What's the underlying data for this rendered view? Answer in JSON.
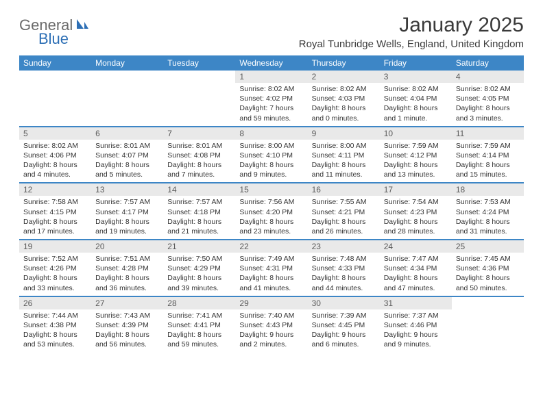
{
  "brand": {
    "general": "General",
    "blue": "Blue"
  },
  "title": "January 2025",
  "location": "Royal Tunbridge Wells, England, United Kingdom",
  "colors": {
    "header_bg": "#3d86c6",
    "header_text": "#ffffff",
    "daynum_bg": "#e9e9e9",
    "daynum_text": "#5a5a5a",
    "body_text": "#333333",
    "rule": "#3d86c6",
    "logo_gray": "#6b6b6b",
    "logo_blue": "#2d6fb5"
  },
  "day_headers": [
    "Sunday",
    "Monday",
    "Tuesday",
    "Wednesday",
    "Thursday",
    "Friday",
    "Saturday"
  ],
  "weeks": [
    [
      {
        "n": "",
        "sr": "",
        "ss": "",
        "dl": "",
        "empty": true
      },
      {
        "n": "",
        "sr": "",
        "ss": "",
        "dl": "",
        "empty": true
      },
      {
        "n": "",
        "sr": "",
        "ss": "",
        "dl": "",
        "empty": true
      },
      {
        "n": "1",
        "sr": "Sunrise: 8:02 AM",
        "ss": "Sunset: 4:02 PM",
        "dl": "Daylight: 7 hours and 59 minutes."
      },
      {
        "n": "2",
        "sr": "Sunrise: 8:02 AM",
        "ss": "Sunset: 4:03 PM",
        "dl": "Daylight: 8 hours and 0 minutes."
      },
      {
        "n": "3",
        "sr": "Sunrise: 8:02 AM",
        "ss": "Sunset: 4:04 PM",
        "dl": "Daylight: 8 hours and 1 minute."
      },
      {
        "n": "4",
        "sr": "Sunrise: 8:02 AM",
        "ss": "Sunset: 4:05 PM",
        "dl": "Daylight: 8 hours and 3 minutes."
      }
    ],
    [
      {
        "n": "5",
        "sr": "Sunrise: 8:02 AM",
        "ss": "Sunset: 4:06 PM",
        "dl": "Daylight: 8 hours and 4 minutes."
      },
      {
        "n": "6",
        "sr": "Sunrise: 8:01 AM",
        "ss": "Sunset: 4:07 PM",
        "dl": "Daylight: 8 hours and 5 minutes."
      },
      {
        "n": "7",
        "sr": "Sunrise: 8:01 AM",
        "ss": "Sunset: 4:08 PM",
        "dl": "Daylight: 8 hours and 7 minutes."
      },
      {
        "n": "8",
        "sr": "Sunrise: 8:00 AM",
        "ss": "Sunset: 4:10 PM",
        "dl": "Daylight: 8 hours and 9 minutes."
      },
      {
        "n": "9",
        "sr": "Sunrise: 8:00 AM",
        "ss": "Sunset: 4:11 PM",
        "dl": "Daylight: 8 hours and 11 minutes."
      },
      {
        "n": "10",
        "sr": "Sunrise: 7:59 AM",
        "ss": "Sunset: 4:12 PM",
        "dl": "Daylight: 8 hours and 13 minutes."
      },
      {
        "n": "11",
        "sr": "Sunrise: 7:59 AM",
        "ss": "Sunset: 4:14 PM",
        "dl": "Daylight: 8 hours and 15 minutes."
      }
    ],
    [
      {
        "n": "12",
        "sr": "Sunrise: 7:58 AM",
        "ss": "Sunset: 4:15 PM",
        "dl": "Daylight: 8 hours and 17 minutes."
      },
      {
        "n": "13",
        "sr": "Sunrise: 7:57 AM",
        "ss": "Sunset: 4:17 PM",
        "dl": "Daylight: 8 hours and 19 minutes."
      },
      {
        "n": "14",
        "sr": "Sunrise: 7:57 AM",
        "ss": "Sunset: 4:18 PM",
        "dl": "Daylight: 8 hours and 21 minutes."
      },
      {
        "n": "15",
        "sr": "Sunrise: 7:56 AM",
        "ss": "Sunset: 4:20 PM",
        "dl": "Daylight: 8 hours and 23 minutes."
      },
      {
        "n": "16",
        "sr": "Sunrise: 7:55 AM",
        "ss": "Sunset: 4:21 PM",
        "dl": "Daylight: 8 hours and 26 minutes."
      },
      {
        "n": "17",
        "sr": "Sunrise: 7:54 AM",
        "ss": "Sunset: 4:23 PM",
        "dl": "Daylight: 8 hours and 28 minutes."
      },
      {
        "n": "18",
        "sr": "Sunrise: 7:53 AM",
        "ss": "Sunset: 4:24 PM",
        "dl": "Daylight: 8 hours and 31 minutes."
      }
    ],
    [
      {
        "n": "19",
        "sr": "Sunrise: 7:52 AM",
        "ss": "Sunset: 4:26 PM",
        "dl": "Daylight: 8 hours and 33 minutes."
      },
      {
        "n": "20",
        "sr": "Sunrise: 7:51 AM",
        "ss": "Sunset: 4:28 PM",
        "dl": "Daylight: 8 hours and 36 minutes."
      },
      {
        "n": "21",
        "sr": "Sunrise: 7:50 AM",
        "ss": "Sunset: 4:29 PM",
        "dl": "Daylight: 8 hours and 39 minutes."
      },
      {
        "n": "22",
        "sr": "Sunrise: 7:49 AM",
        "ss": "Sunset: 4:31 PM",
        "dl": "Daylight: 8 hours and 41 minutes."
      },
      {
        "n": "23",
        "sr": "Sunrise: 7:48 AM",
        "ss": "Sunset: 4:33 PM",
        "dl": "Daylight: 8 hours and 44 minutes."
      },
      {
        "n": "24",
        "sr": "Sunrise: 7:47 AM",
        "ss": "Sunset: 4:34 PM",
        "dl": "Daylight: 8 hours and 47 minutes."
      },
      {
        "n": "25",
        "sr": "Sunrise: 7:45 AM",
        "ss": "Sunset: 4:36 PM",
        "dl": "Daylight: 8 hours and 50 minutes."
      }
    ],
    [
      {
        "n": "26",
        "sr": "Sunrise: 7:44 AM",
        "ss": "Sunset: 4:38 PM",
        "dl": "Daylight: 8 hours and 53 minutes."
      },
      {
        "n": "27",
        "sr": "Sunrise: 7:43 AM",
        "ss": "Sunset: 4:39 PM",
        "dl": "Daylight: 8 hours and 56 minutes."
      },
      {
        "n": "28",
        "sr": "Sunrise: 7:41 AM",
        "ss": "Sunset: 4:41 PM",
        "dl": "Daylight: 8 hours and 59 minutes."
      },
      {
        "n": "29",
        "sr": "Sunrise: 7:40 AM",
        "ss": "Sunset: 4:43 PM",
        "dl": "Daylight: 9 hours and 2 minutes."
      },
      {
        "n": "30",
        "sr": "Sunrise: 7:39 AM",
        "ss": "Sunset: 4:45 PM",
        "dl": "Daylight: 9 hours and 6 minutes."
      },
      {
        "n": "31",
        "sr": "Sunrise: 7:37 AM",
        "ss": "Sunset: 4:46 PM",
        "dl": "Daylight: 9 hours and 9 minutes."
      },
      {
        "n": "",
        "sr": "",
        "ss": "",
        "dl": "",
        "empty": true
      }
    ]
  ]
}
